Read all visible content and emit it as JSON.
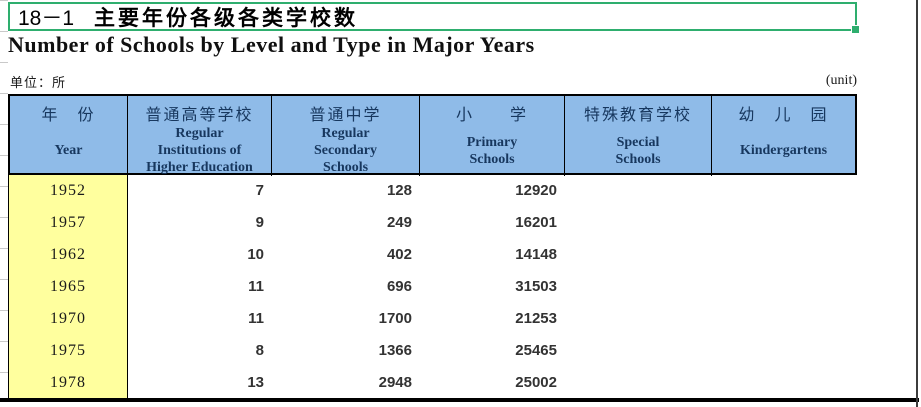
{
  "title": {
    "code": "18－1",
    "zh": "主要年份各级各类学校数",
    "en": "Number of Schools by Level and Type in Major Years"
  },
  "unit_row": {
    "left": "单位：所",
    "right": "(unit)"
  },
  "colors": {
    "header_bg": "#8FBBE8",
    "year_column_bg": "#FFFF9E",
    "selection_green": "#2EAE6E",
    "header_text": "#17375E"
  },
  "table": {
    "columns": [
      {
        "zh": "年　份",
        "en": "Year"
      },
      {
        "zh": "普通高等学校",
        "en": "Regular\nInstitutions of\nHigher Education"
      },
      {
        "zh": "普通中学",
        "en": "Regular\nSecondary\nSchools"
      },
      {
        "zh": "小　　学",
        "en": "Primary\nSchools"
      },
      {
        "zh": "特殊教育学校",
        "en": "Special\nSchools"
      },
      {
        "zh": "幼　儿　园",
        "en": "Kindergartens"
      }
    ],
    "rows": [
      {
        "year": "1952",
        "values": [
          "7",
          "128",
          "12920",
          "",
          ""
        ]
      },
      {
        "year": "1957",
        "values": [
          "9",
          "249",
          "16201",
          "",
          ""
        ]
      },
      {
        "year": "1962",
        "values": [
          "10",
          "402",
          "14148",
          "",
          ""
        ]
      },
      {
        "year": "1965",
        "values": [
          "11",
          "696",
          "31503",
          "",
          ""
        ]
      },
      {
        "year": "1970",
        "values": [
          "11",
          "1700",
          "21253",
          "",
          ""
        ]
      },
      {
        "year": "1975",
        "values": [
          "8",
          "1366",
          "25465",
          "",
          ""
        ]
      },
      {
        "year": "1978",
        "values": [
          "13",
          "2948",
          "25002",
          "",
          ""
        ]
      }
    ]
  }
}
